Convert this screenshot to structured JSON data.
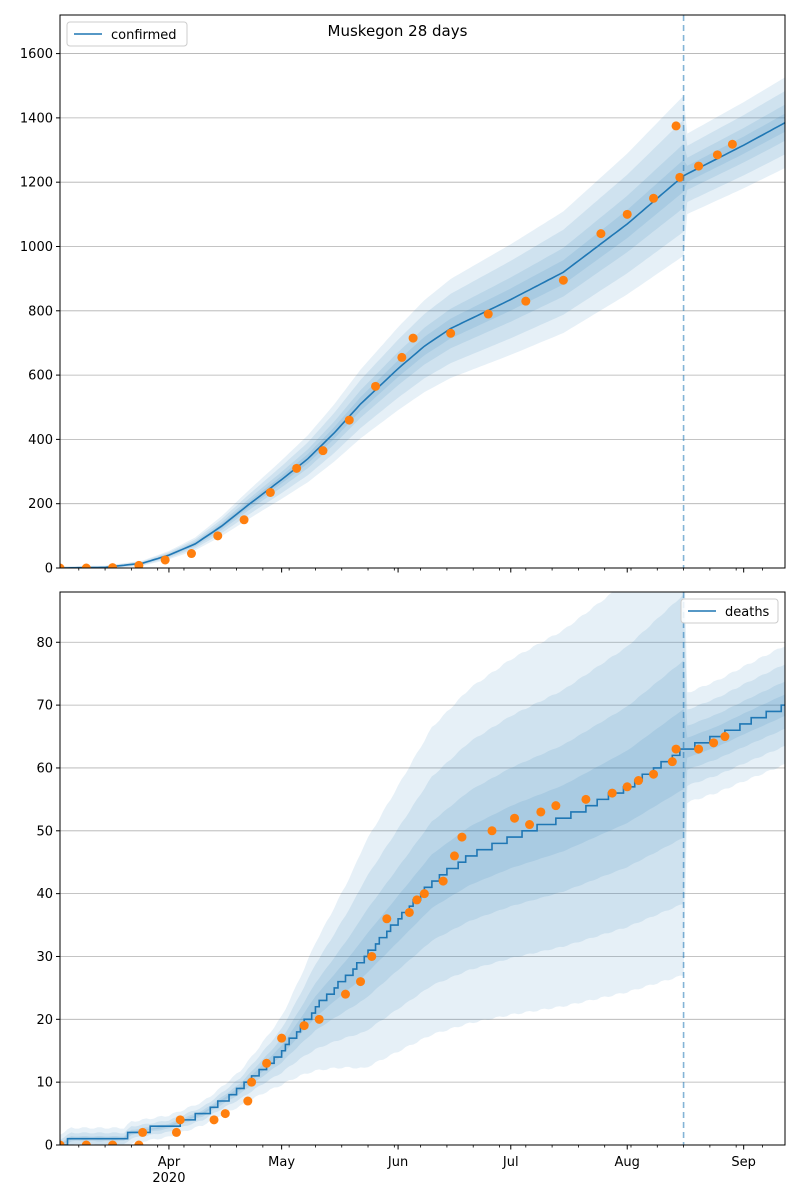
{
  "chart_data": [
    {
      "type": "line",
      "title": "Muskegon 28 days",
      "xlabel": "",
      "ylabel": "",
      "xlim": [
        "2020-03-03",
        "2020-09-12"
      ],
      "ylim": [
        0,
        1720
      ],
      "yticks": [
        0,
        200,
        400,
        600,
        800,
        1000,
        1200,
        1400,
        1600
      ],
      "xticks": [
        {
          "date": "2020-04-01",
          "label": "Apr",
          "sublabel": "2020"
        },
        {
          "date": "2020-05-01",
          "label": "May",
          "sublabel": ""
        },
        {
          "date": "2020-06-01",
          "label": "Jun",
          "sublabel": ""
        },
        {
          "date": "2020-07-01",
          "label": "Jul",
          "sublabel": ""
        },
        {
          "date": "2020-08-01",
          "label": "Aug",
          "sublabel": ""
        },
        {
          "date": "2020-09-01",
          "label": "Sep",
          "sublabel": ""
        }
      ],
      "grid": "horizontal",
      "legend": {
        "position": "upper-left",
        "entries": [
          "confirmed"
        ]
      },
      "forecast_start": "2020-08-16",
      "series": [
        {
          "name": "confirmed",
          "role": "model",
          "color": "#1f77b4",
          "points": [
            [
              "2020-03-03",
              0
            ],
            [
              "2020-03-15",
              2
            ],
            [
              "2020-03-25",
              15
            ],
            [
              "2020-04-01",
              40
            ],
            [
              "2020-04-08",
              75
            ],
            [
              "2020-04-15",
              130
            ],
            [
              "2020-04-22",
              195
            ],
            [
              "2020-05-01",
              275
            ],
            [
              "2020-05-08",
              340
            ],
            [
              "2020-05-15",
              420
            ],
            [
              "2020-05-22",
              510
            ],
            [
              "2020-06-01",
              620
            ],
            [
              "2020-06-08",
              690
            ],
            [
              "2020-06-15",
              745
            ],
            [
              "2020-07-01",
              835
            ],
            [
              "2020-07-15",
              920
            ],
            [
              "2020-08-01",
              1070
            ],
            [
              "2020-08-16",
              1220
            ],
            [
              "2020-09-01",
              1315
            ],
            [
              "2020-09-12",
              1385
            ]
          ]
        },
        {
          "name": "",
          "role": "observed",
          "color": "#ff7f0e",
          "points": [
            [
              "2020-03-03",
              0
            ],
            [
              "2020-03-10",
              0
            ],
            [
              "2020-03-17",
              1
            ],
            [
              "2020-03-24",
              8
            ],
            [
              "2020-03-31",
              25
            ],
            [
              "2020-04-07",
              45
            ],
            [
              "2020-04-14",
              100
            ],
            [
              "2020-04-21",
              150
            ],
            [
              "2020-04-28",
              235
            ],
            [
              "2020-05-05",
              310
            ],
            [
              "2020-05-12",
              365
            ],
            [
              "2020-05-19",
              460
            ],
            [
              "2020-05-26",
              565
            ],
            [
              "2020-06-02",
              655
            ],
            [
              "2020-06-05",
              715
            ],
            [
              "2020-06-15",
              730
            ],
            [
              "2020-06-25",
              790
            ],
            [
              "2020-07-05",
              830
            ],
            [
              "2020-07-15",
              895
            ],
            [
              "2020-07-25",
              1040
            ],
            [
              "2020-08-01",
              1100
            ],
            [
              "2020-08-08",
              1150
            ],
            [
              "2020-08-15",
              1215
            ],
            [
              "2020-08-14",
              1375
            ],
            [
              "2020-08-20",
              1250
            ],
            [
              "2020-08-25",
              1285
            ],
            [
              "2020-08-29",
              1318
            ]
          ]
        }
      ]
    },
    {
      "type": "line",
      "title": "",
      "xlabel": "",
      "ylabel": "",
      "xlim": [
        "2020-03-03",
        "2020-09-12"
      ],
      "ylim": [
        0,
        88
      ],
      "yticks": [
        0,
        10,
        20,
        30,
        40,
        50,
        60,
        70,
        80
      ],
      "xticks": [
        {
          "date": "2020-04-01",
          "label": "Apr",
          "sublabel": "2020"
        },
        {
          "date": "2020-05-01",
          "label": "May",
          "sublabel": ""
        },
        {
          "date": "2020-06-01",
          "label": "Jun",
          "sublabel": ""
        },
        {
          "date": "2020-07-01",
          "label": "Jul",
          "sublabel": ""
        },
        {
          "date": "2020-08-01",
          "label": "Aug",
          "sublabel": ""
        },
        {
          "date": "2020-09-01",
          "label": "Sep",
          "sublabel": ""
        }
      ],
      "grid": "horizontal",
      "legend": {
        "position": "upper-right",
        "entries": [
          "deaths"
        ]
      },
      "forecast_start": "2020-08-16",
      "series": [
        {
          "name": "deaths",
          "role": "model",
          "color": "#1f77b4",
          "points": [
            [
              "2020-03-03",
              0
            ],
            [
              "2020-03-06",
              1
            ],
            [
              "2020-03-20",
              1
            ],
            [
              "2020-03-22",
              2
            ],
            [
              "2020-04-01",
              3
            ],
            [
              "2020-04-10",
              5
            ],
            [
              "2020-04-20",
              9
            ],
            [
              "2020-05-01",
              15
            ],
            [
              "2020-05-10",
              22
            ],
            [
              "2020-05-20",
              28
            ],
            [
              "2020-06-01",
              36
            ],
            [
              "2020-06-10",
              42
            ],
            [
              "2020-06-20",
              46
            ],
            [
              "2020-07-01",
              49
            ],
            [
              "2020-07-15",
              52
            ],
            [
              "2020-08-01",
              57
            ],
            [
              "2020-08-16",
              63
            ],
            [
              "2020-08-25",
              65
            ],
            [
              "2020-09-01",
              67
            ],
            [
              "2020-09-12",
              70
            ]
          ]
        },
        {
          "name": "",
          "role": "observed",
          "color": "#ff7f0e",
          "points": [
            [
              "2020-03-03",
              0
            ],
            [
              "2020-03-10",
              0
            ],
            [
              "2020-03-17",
              0
            ],
            [
              "2020-03-24",
              0
            ],
            [
              "2020-03-25",
              2
            ],
            [
              "2020-04-03",
              2
            ],
            [
              "2020-04-04",
              4
            ],
            [
              "2020-04-13",
              4
            ],
            [
              "2020-04-16",
              5
            ],
            [
              "2020-04-22",
              7
            ],
            [
              "2020-04-23",
              10
            ],
            [
              "2020-04-27",
              13
            ],
            [
              "2020-05-01",
              17
            ],
            [
              "2020-05-07",
              19
            ],
            [
              "2020-05-11",
              20
            ],
            [
              "2020-05-18",
              24
            ],
            [
              "2020-05-22",
              26
            ],
            [
              "2020-05-25",
              30
            ],
            [
              "2020-05-29",
              36
            ],
            [
              "2020-06-04",
              37
            ],
            [
              "2020-06-06",
              39
            ],
            [
              "2020-06-08",
              40
            ],
            [
              "2020-06-13",
              42
            ],
            [
              "2020-06-16",
              46
            ],
            [
              "2020-06-18",
              49
            ],
            [
              "2020-06-26",
              50
            ],
            [
              "2020-07-02",
              52
            ],
            [
              "2020-07-06",
              51
            ],
            [
              "2020-07-09",
              53
            ],
            [
              "2020-07-13",
              54
            ],
            [
              "2020-07-21",
              55
            ],
            [
              "2020-07-28",
              56
            ],
            [
              "2020-08-01",
              57
            ],
            [
              "2020-08-04",
              58
            ],
            [
              "2020-08-08",
              59
            ],
            [
              "2020-08-13",
              61
            ],
            [
              "2020-08-14",
              63
            ],
            [
              "2020-08-20",
              63
            ],
            [
              "2020-08-24",
              64
            ],
            [
              "2020-08-27",
              65
            ]
          ]
        }
      ]
    }
  ]
}
